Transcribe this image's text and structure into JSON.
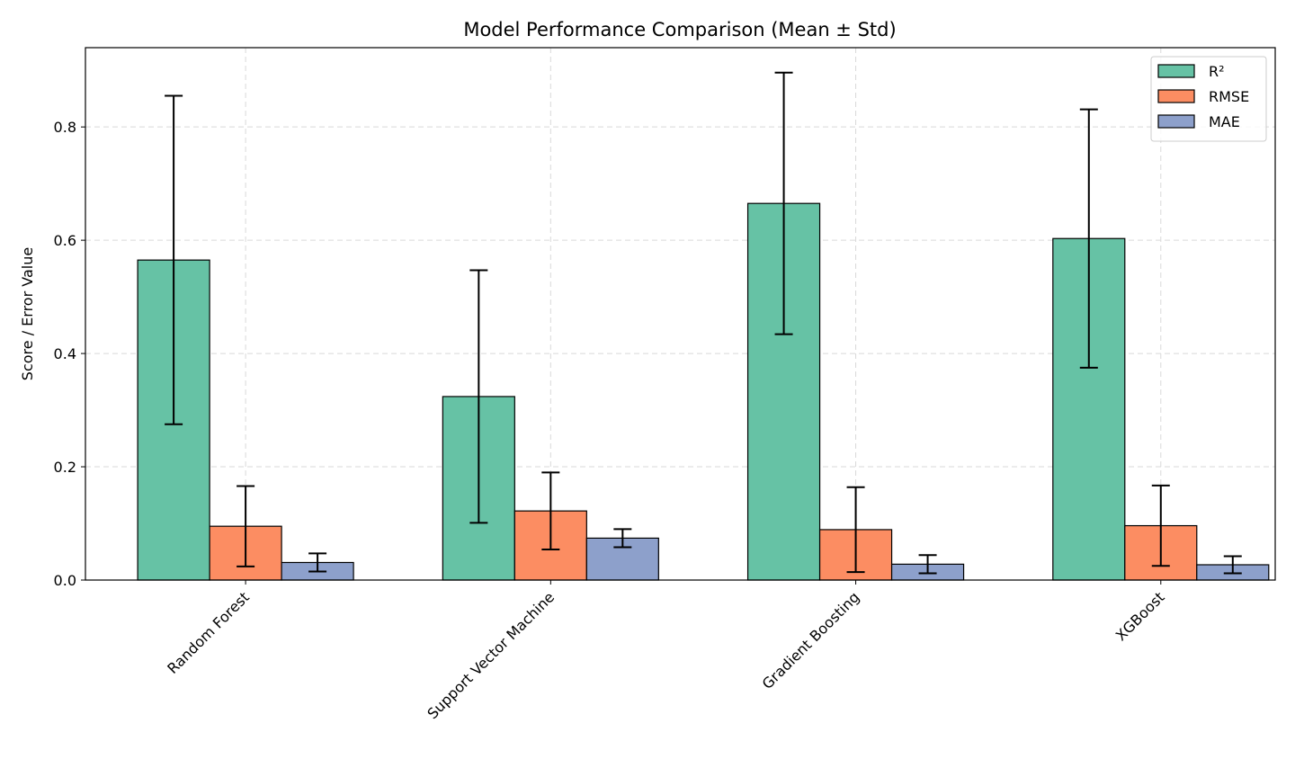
{
  "chart_data": {
    "type": "bar",
    "title": "Model Performance Comparison (Mean ± Std)",
    "xlabel": "",
    "ylabel": "Score / Error Value",
    "ylim": [
      0,
      0.94
    ],
    "yticks": [
      0.0,
      0.2,
      0.4,
      0.6,
      0.8
    ],
    "ytick_labels": [
      "0.0",
      "0.2",
      "0.4",
      "0.6",
      "0.8"
    ],
    "grid": true,
    "legend_position": "top-right",
    "categories": [
      "Random Forest",
      "Support Vector Machine",
      "Gradient Boosting",
      "XGBoost"
    ],
    "series": [
      {
        "name": "R²",
        "color": "#66c2a5",
        "values": [
          0.565,
          0.324,
          0.665,
          0.603
        ],
        "errors": [
          0.29,
          0.223,
          0.231,
          0.228
        ]
      },
      {
        "name": "RMSE",
        "color": "#fc8d62",
        "values": [
          0.095,
          0.122,
          0.089,
          0.096
        ],
        "errors": [
          0.071,
          0.068,
          0.075,
          0.071
        ]
      },
      {
        "name": "MAE",
        "color": "#8da0cb",
        "values": [
          0.031,
          0.074,
          0.028,
          0.027
        ],
        "errors": [
          0.016,
          0.016,
          0.016,
          0.015
        ]
      }
    ]
  }
}
